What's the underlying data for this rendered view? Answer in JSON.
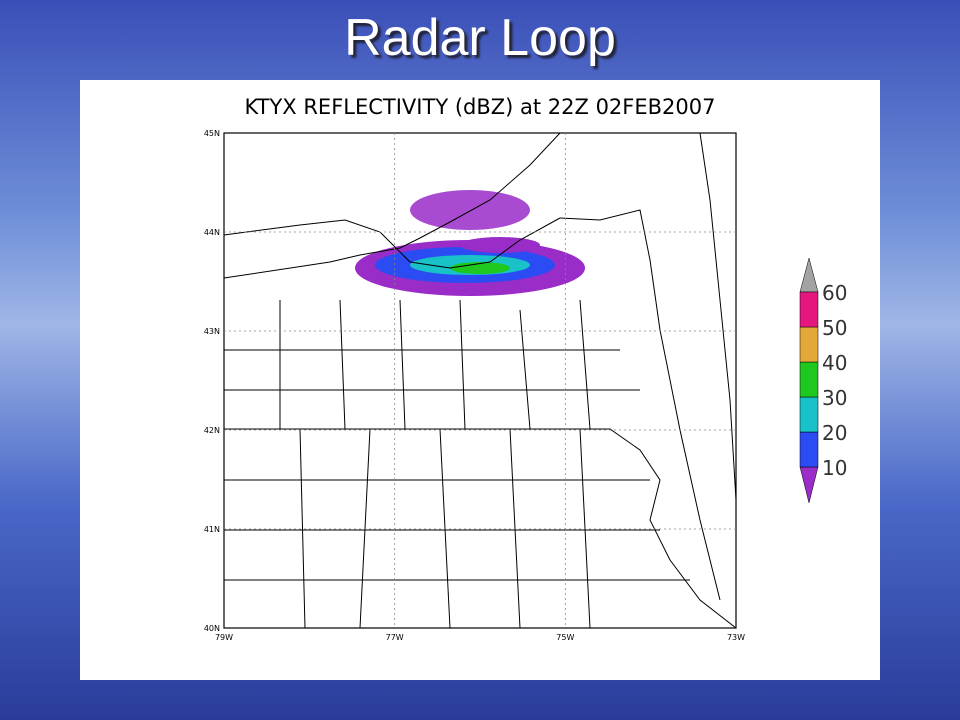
{
  "slide": {
    "title": "Radar Loop"
  },
  "map": {
    "title": "KTYX REFLECTIVITY (dBZ) at 22Z 02FEB2007",
    "lat_labels": [
      "45N",
      "44N",
      "43N",
      "42N",
      "41N",
      "40N"
    ],
    "lon_labels": [
      "79W",
      "77W",
      "75W",
      "73W"
    ]
  },
  "colorbar": {
    "levels": [
      10,
      20,
      30,
      40,
      50,
      60
    ],
    "colors": [
      "#9a2cc8",
      "#2b4cf2",
      "#18c2c8",
      "#1fc81f",
      "#e4a83a",
      "#e5177f",
      "#a3a3a3"
    ]
  }
}
